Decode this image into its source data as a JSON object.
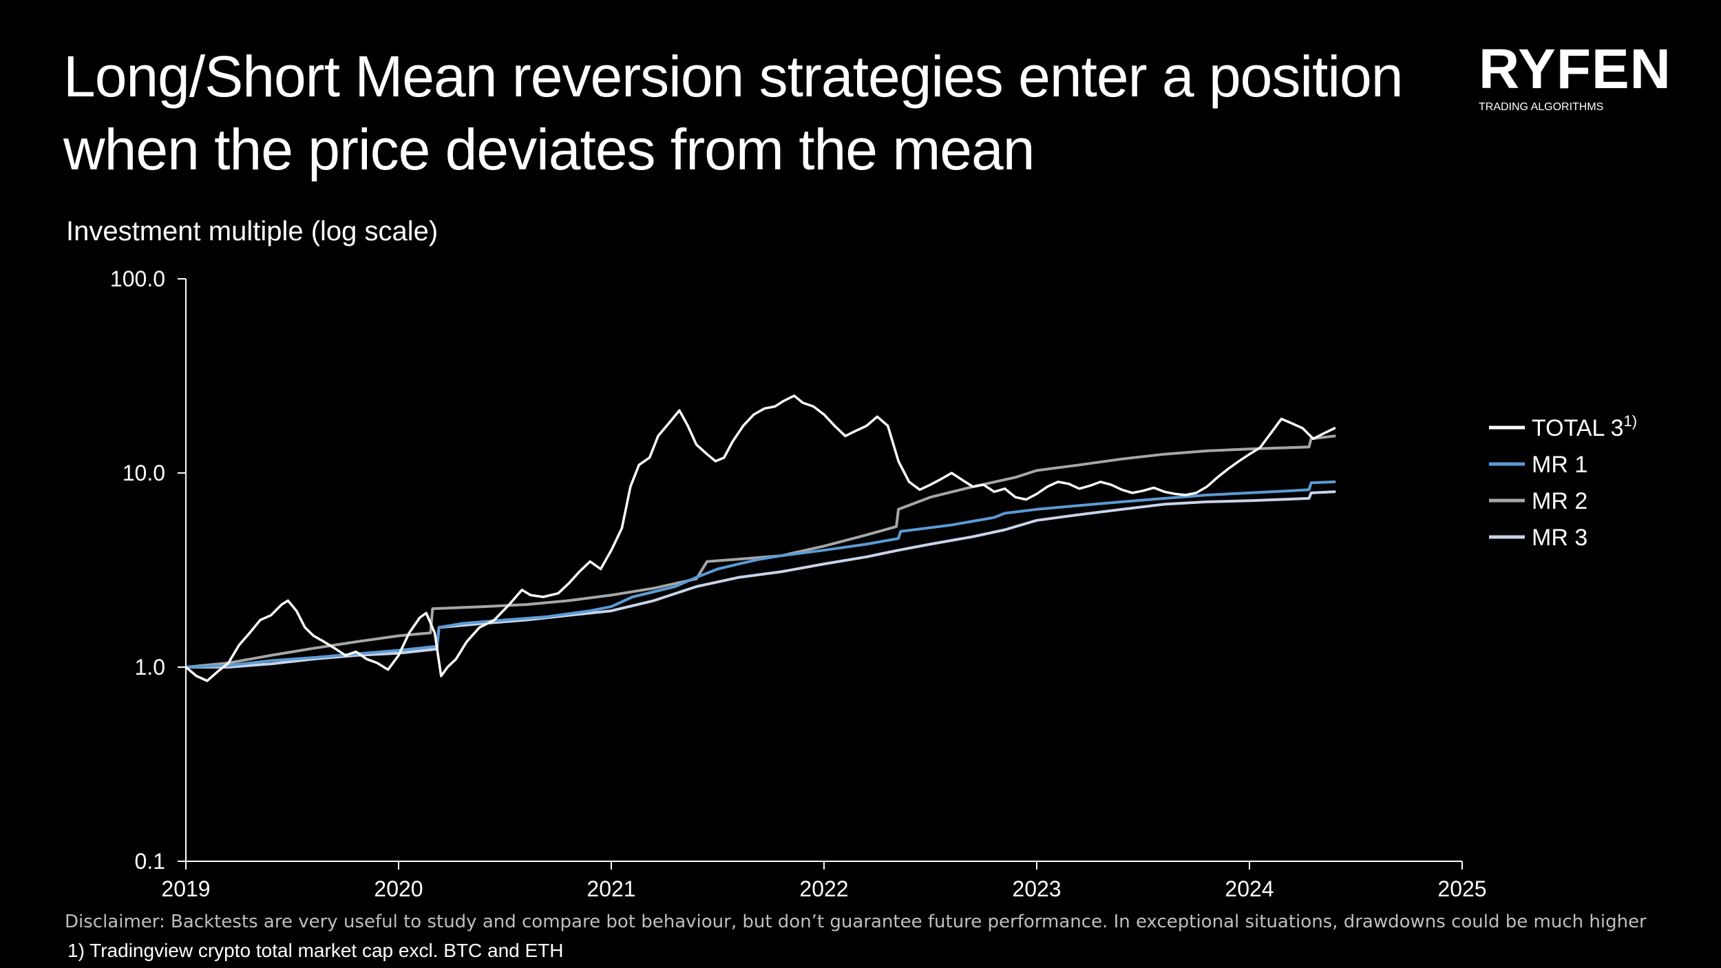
{
  "title": "Long/Short Mean reversion strategies enter a position when the price deviates from the mean",
  "logo": {
    "name": "RYFEN",
    "tagline": "TRADING ALGORITHMS"
  },
  "subtitle": "Investment multiple (log scale)",
  "disclaimer": "Disclaimer: Backtests are very useful to study and compare bot behaviour, but don’t guarantee future performance. In exceptional situations, drawdowns could be much higher",
  "footnote": "1) Tradingview crypto total market cap excl. BTC and ETH",
  "colors": {
    "background": "#000000",
    "total3": "#ffffff",
    "mr1": "#5b9bd5",
    "mr2": "#a6a6a6",
    "mr3": "#c9d3ea"
  },
  "chart_data": {
    "type": "line",
    "title": "Investment multiple (log scale)",
    "yscale": "log",
    "ylim": [
      0.1,
      100
    ],
    "xlim": [
      2019,
      2025
    ],
    "y_ticks": [
      {
        "value": 0.1,
        "label": "0.1"
      },
      {
        "value": 1,
        "label": "1.0"
      },
      {
        "value": 10,
        "label": "10.0"
      },
      {
        "value": 100,
        "label": "100.0"
      }
    ],
    "x_ticks": [
      {
        "value": 2019,
        "label": "2019"
      },
      {
        "value": 2020,
        "label": "2020"
      },
      {
        "value": 2021,
        "label": "2021"
      },
      {
        "value": 2022,
        "label": "2022"
      },
      {
        "value": 2023,
        "label": "2023"
      },
      {
        "value": 2024,
        "label": "2024"
      },
      {
        "value": 2025,
        "label": "2025"
      }
    ],
    "legend_position": "right",
    "grid": false,
    "series": [
      {
        "name": "TOTAL 3",
        "superscript": "1)",
        "color": "#ffffff",
        "points": [
          [
            2019.0,
            1.0
          ],
          [
            2019.05,
            0.9
          ],
          [
            2019.1,
            0.85
          ],
          [
            2019.15,
            0.95
          ],
          [
            2019.2,
            1.05
          ],
          [
            2019.25,
            1.3
          ],
          [
            2019.3,
            1.5
          ],
          [
            2019.35,
            1.75
          ],
          [
            2019.4,
            1.85
          ],
          [
            2019.45,
            2.1
          ],
          [
            2019.48,
            2.2
          ],
          [
            2019.52,
            1.95
          ],
          [
            2019.56,
            1.6
          ],
          [
            2019.6,
            1.45
          ],
          [
            2019.65,
            1.35
          ],
          [
            2019.7,
            1.25
          ],
          [
            2019.75,
            1.15
          ],
          [
            2019.8,
            1.2
          ],
          [
            2019.85,
            1.1
          ],
          [
            2019.9,
            1.05
          ],
          [
            2019.95,
            0.97
          ],
          [
            2020.0,
            1.15
          ],
          [
            2020.05,
            1.5
          ],
          [
            2020.1,
            1.8
          ],
          [
            2020.13,
            1.9
          ],
          [
            2020.17,
            1.5
          ],
          [
            2020.2,
            0.9
          ],
          [
            2020.23,
            1.0
          ],
          [
            2020.27,
            1.1
          ],
          [
            2020.32,
            1.35
          ],
          [
            2020.38,
            1.6
          ],
          [
            2020.45,
            1.75
          ],
          [
            2020.52,
            2.1
          ],
          [
            2020.58,
            2.5
          ],
          [
            2020.62,
            2.35
          ],
          [
            2020.68,
            2.3
          ],
          [
            2020.75,
            2.4
          ],
          [
            2020.8,
            2.7
          ],
          [
            2020.85,
            3.1
          ],
          [
            2020.9,
            3.5
          ],
          [
            2020.95,
            3.2
          ],
          [
            2021.0,
            4.0
          ],
          [
            2021.05,
            5.2
          ],
          [
            2021.09,
            8.5
          ],
          [
            2021.13,
            11.0
          ],
          [
            2021.18,
            12.0
          ],
          [
            2021.22,
            15.5
          ],
          [
            2021.27,
            18.0
          ],
          [
            2021.32,
            21.0
          ],
          [
            2021.36,
            17.5
          ],
          [
            2021.4,
            14.0
          ],
          [
            2021.45,
            12.5
          ],
          [
            2021.49,
            11.5
          ],
          [
            2021.53,
            12.0
          ],
          [
            2021.57,
            14.5
          ],
          [
            2021.62,
            17.5
          ],
          [
            2021.67,
            20.0
          ],
          [
            2021.72,
            21.5
          ],
          [
            2021.77,
            22.0
          ],
          [
            2021.81,
            23.5
          ],
          [
            2021.86,
            25.0
          ],
          [
            2021.9,
            23.0
          ],
          [
            2021.95,
            22.0
          ],
          [
            2022.0,
            20.0
          ],
          [
            2022.05,
            17.5
          ],
          [
            2022.1,
            15.5
          ],
          [
            2022.15,
            16.5
          ],
          [
            2022.2,
            17.5
          ],
          [
            2022.25,
            19.5
          ],
          [
            2022.3,
            17.5
          ],
          [
            2022.35,
            11.5
          ],
          [
            2022.4,
            9.0
          ],
          [
            2022.45,
            8.2
          ],
          [
            2022.5,
            8.7
          ],
          [
            2022.55,
            9.3
          ],
          [
            2022.6,
            10.0
          ],
          [
            2022.65,
            9.2
          ],
          [
            2022.7,
            8.5
          ],
          [
            2022.75,
            8.7
          ],
          [
            2022.8,
            8.0
          ],
          [
            2022.85,
            8.3
          ],
          [
            2022.9,
            7.5
          ],
          [
            2022.95,
            7.3
          ],
          [
            2023.0,
            7.8
          ],
          [
            2023.05,
            8.5
          ],
          [
            2023.1,
            9.0
          ],
          [
            2023.15,
            8.8
          ],
          [
            2023.2,
            8.3
          ],
          [
            2023.25,
            8.6
          ],
          [
            2023.3,
            9.0
          ],
          [
            2023.35,
            8.7
          ],
          [
            2023.4,
            8.2
          ],
          [
            2023.45,
            7.9
          ],
          [
            2023.5,
            8.1
          ],
          [
            2023.55,
            8.4
          ],
          [
            2023.6,
            8.0
          ],
          [
            2023.65,
            7.8
          ],
          [
            2023.7,
            7.7
          ],
          [
            2023.75,
            7.9
          ],
          [
            2023.8,
            8.5
          ],
          [
            2023.85,
            9.5
          ],
          [
            2023.9,
            10.5
          ],
          [
            2023.95,
            11.5
          ],
          [
            2024.0,
            12.5
          ],
          [
            2024.05,
            13.5
          ],
          [
            2024.1,
            16.0
          ],
          [
            2024.15,
            19.0
          ],
          [
            2024.2,
            18.0
          ],
          [
            2024.25,
            17.0
          ],
          [
            2024.3,
            15.0
          ],
          [
            2024.35,
            16.0
          ],
          [
            2024.4,
            17.0
          ]
        ]
      },
      {
        "name": "MR 1",
        "color": "#5b9bd5",
        "points": [
          [
            2019.0,
            1.0
          ],
          [
            2019.2,
            1.02
          ],
          [
            2019.4,
            1.08
          ],
          [
            2019.6,
            1.12
          ],
          [
            2019.8,
            1.17
          ],
          [
            2020.0,
            1.22
          ],
          [
            2020.18,
            1.28
          ],
          [
            2020.19,
            1.6
          ],
          [
            2020.3,
            1.68
          ],
          [
            2020.5,
            1.75
          ],
          [
            2020.7,
            1.82
          ],
          [
            2020.9,
            1.95
          ],
          [
            2021.0,
            2.05
          ],
          [
            2021.1,
            2.3
          ],
          [
            2021.3,
            2.6
          ],
          [
            2021.4,
            2.9
          ],
          [
            2021.5,
            3.2
          ],
          [
            2021.6,
            3.4
          ],
          [
            2021.7,
            3.6
          ],
          [
            2021.8,
            3.75
          ],
          [
            2022.0,
            4.0
          ],
          [
            2022.2,
            4.3
          ],
          [
            2022.35,
            4.6
          ],
          [
            2022.36,
            5.0
          ],
          [
            2022.6,
            5.4
          ],
          [
            2022.8,
            5.9
          ],
          [
            2022.85,
            6.2
          ],
          [
            2023.0,
            6.5
          ],
          [
            2023.2,
            6.8
          ],
          [
            2023.4,
            7.1
          ],
          [
            2023.6,
            7.4
          ],
          [
            2023.8,
            7.7
          ],
          [
            2024.0,
            7.9
          ],
          [
            2024.2,
            8.1
          ],
          [
            2024.28,
            8.2
          ],
          [
            2024.29,
            8.9
          ],
          [
            2024.4,
            9.0
          ]
        ]
      },
      {
        "name": "MR 2",
        "color": "#a6a6a6",
        "points": [
          [
            2019.0,
            1.0
          ],
          [
            2019.2,
            1.05
          ],
          [
            2019.4,
            1.15
          ],
          [
            2019.6,
            1.25
          ],
          [
            2019.8,
            1.35
          ],
          [
            2020.0,
            1.45
          ],
          [
            2020.15,
            1.5
          ],
          [
            2020.16,
            2.0
          ],
          [
            2020.4,
            2.05
          ],
          [
            2020.6,
            2.1
          ],
          [
            2020.8,
            2.2
          ],
          [
            2021.0,
            2.35
          ],
          [
            2021.2,
            2.55
          ],
          [
            2021.4,
            2.85
          ],
          [
            2021.45,
            3.5
          ],
          [
            2021.6,
            3.6
          ],
          [
            2021.8,
            3.75
          ],
          [
            2022.0,
            4.2
          ],
          [
            2022.2,
            4.8
          ],
          [
            2022.34,
            5.3
          ],
          [
            2022.35,
            6.5
          ],
          [
            2022.5,
            7.5
          ],
          [
            2022.7,
            8.5
          ],
          [
            2022.9,
            9.5
          ],
          [
            2023.0,
            10.3
          ],
          [
            2023.2,
            11.0
          ],
          [
            2023.4,
            11.8
          ],
          [
            2023.6,
            12.5
          ],
          [
            2023.8,
            13.0
          ],
          [
            2024.0,
            13.3
          ],
          [
            2024.28,
            13.6
          ],
          [
            2024.29,
            15.0
          ],
          [
            2024.4,
            15.5
          ]
        ]
      },
      {
        "name": "MR 3",
        "color": "#c9d3ea",
        "points": [
          [
            2019.0,
            1.0
          ],
          [
            2019.2,
            1.0
          ],
          [
            2019.4,
            1.04
          ],
          [
            2019.6,
            1.1
          ],
          [
            2019.8,
            1.15
          ],
          [
            2020.0,
            1.18
          ],
          [
            2020.18,
            1.24
          ],
          [
            2020.19,
            1.6
          ],
          [
            2020.4,
            1.68
          ],
          [
            2020.6,
            1.75
          ],
          [
            2020.8,
            1.85
          ],
          [
            2021.0,
            1.95
          ],
          [
            2021.2,
            2.2
          ],
          [
            2021.4,
            2.6
          ],
          [
            2021.6,
            2.9
          ],
          [
            2021.8,
            3.1
          ],
          [
            2022.0,
            3.4
          ],
          [
            2022.2,
            3.7
          ],
          [
            2022.35,
            4.0
          ],
          [
            2022.5,
            4.3
          ],
          [
            2022.7,
            4.7
          ],
          [
            2022.85,
            5.1
          ],
          [
            2023.0,
            5.7
          ],
          [
            2023.2,
            6.1
          ],
          [
            2023.4,
            6.5
          ],
          [
            2023.6,
            6.9
          ],
          [
            2023.8,
            7.1
          ],
          [
            2024.0,
            7.2
          ],
          [
            2024.28,
            7.4
          ],
          [
            2024.29,
            7.9
          ],
          [
            2024.4,
            8.0
          ]
        ]
      }
    ]
  }
}
